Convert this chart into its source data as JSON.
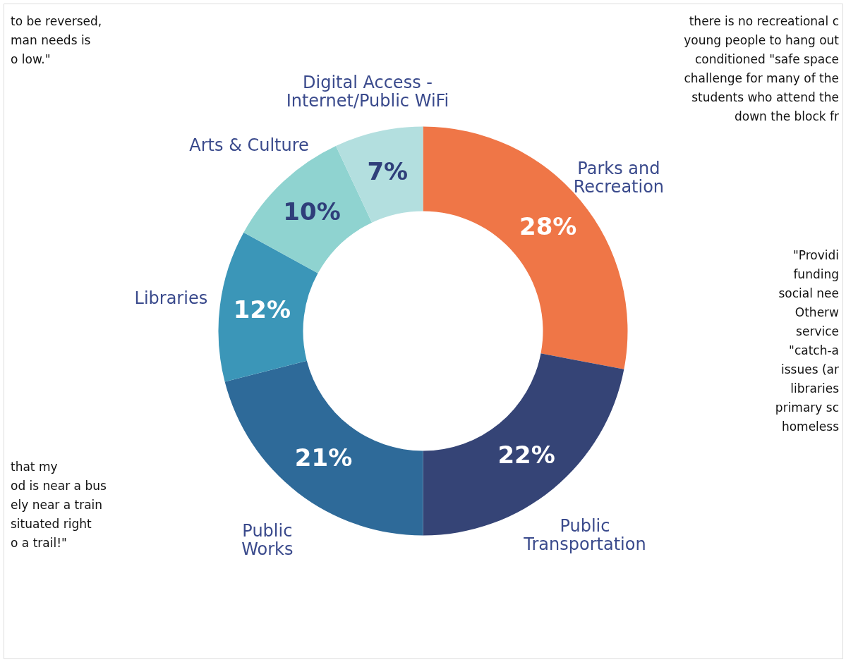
{
  "chart_data": {
    "type": "donut",
    "categories": [
      "Parks and\nRecreation",
      "Public\nTransportation",
      "Public\nWorks",
      "Libraries",
      "Arts & Culture",
      "Digital Access -\nInternet/Public WiFi"
    ],
    "values": [
      28,
      22,
      21,
      12,
      10,
      7
    ],
    "colors": [
      "#ef7647",
      "#354476",
      "#2e6a99",
      "#3b96b8",
      "#8fd3d0",
      "#b3dfdf"
    ],
    "value_labels": [
      "28%",
      "22%",
      "21%",
      "12%",
      "10%",
      "7%"
    ],
    "annotations": [
      "to be reversed,\nman needs is\no low.\"",
      "there is no recreational c\nyoung people to hang out\nconditioned \"safe space\nchallenge for many of the\nstudents who attend the\ndown the block fr",
      "\"Providi\nfunding\nsocial nee\nOtherw\nservice\n\"catch-a\nissues (ar\nlibraries\nprimary sc\nhomeless",
      "that my\nod is near a bus\nely near a train\nsituated right\no a trail!\""
    ]
  }
}
